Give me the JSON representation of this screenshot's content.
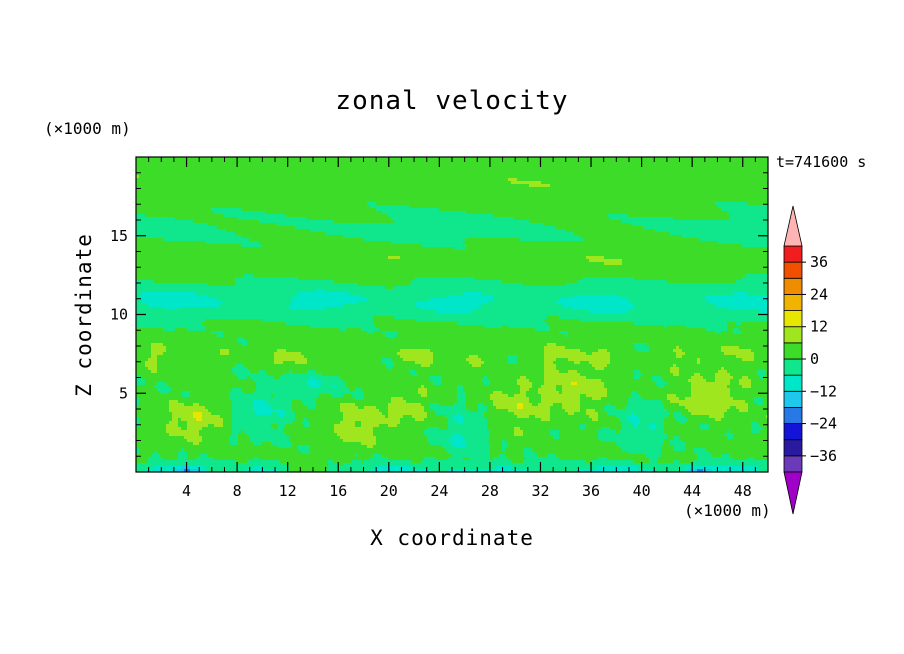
{
  "chart_data": {
    "type": "heatmap",
    "title": "zonal velocity",
    "xlabel": "X coordinate",
    "ylabel": "Z coordinate",
    "x_unit_label": "(×1000 m)",
    "y_unit_label": "(×1000 m)",
    "time_label": "t=741600 s",
    "xlim": [
      0,
      50
    ],
    "ylim": [
      0,
      20
    ],
    "x_ticks": [
      4,
      8,
      12,
      16,
      20,
      24,
      28,
      32,
      36,
      40,
      44,
      48
    ],
    "y_ticks": [
      5,
      10,
      15
    ],
    "colorbar": {
      "levels": [
        -42,
        -36,
        -30,
        -24,
        -18,
        -12,
        -6,
        0,
        6,
        12,
        18,
        24,
        30,
        36,
        42
      ],
      "tick_values": [
        36,
        24,
        12,
        0,
        -12,
        -24,
        -36
      ],
      "tick_labels": [
        "36",
        "24",
        "12",
        "0",
        "−12",
        "−24",
        "−36"
      ],
      "colors": [
        "#a000c8",
        "#6a3ab8",
        "#2a1aa0",
        "#1414d8",
        "#2878e6",
        "#1ec8ec",
        "#00e6c8",
        "#10e68c",
        "#3cdc28",
        "#a0e61e",
        "#e6e600",
        "#f0b400",
        "#f08c00",
        "#f05000",
        "#f01e1e",
        "#ffb4b4"
      ],
      "extend": "both"
    },
    "field_description_layers": [
      {
        "z_range": [
          0,
          1
        ],
        "dominant_value": -9
      },
      {
        "z_range": [
          1,
          6
        ],
        "dominant_value": 0
      },
      {
        "z_range": [
          6,
          9
        ],
        "dominant_value": 4
      },
      {
        "z_range": [
          9,
          12
        ],
        "dominant_value": -9
      },
      {
        "z_range": [
          12,
          20
        ],
        "dominant_value": 0
      }
    ]
  }
}
